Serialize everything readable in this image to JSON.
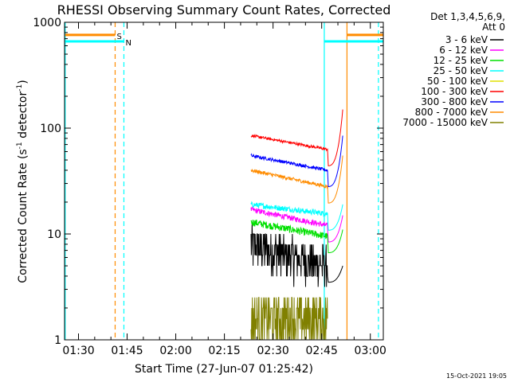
{
  "chart_data": {
    "type": "line",
    "title": "RHESSI Observing Summary Count Rates, Corrected",
    "xlabel": "Start Time (27-Jun-07 01:25:42)",
    "ylabel_main": "Corrected Count Rate (s",
    "ylabel_sup1": "-1",
    "ylabel_mid": " detector",
    "ylabel_sup2": "-1",
    "ylabel_end": ")",
    "yscale": "log",
    "ylim": [
      1,
      1000
    ],
    "xlim_minutes": [
      85.7,
      184.0
    ],
    "x_ticks": [
      {
        "minute": 90,
        "label": "01:30"
      },
      {
        "minute": 105,
        "label": "01:45"
      },
      {
        "minute": 120,
        "label": "02:00"
      },
      {
        "minute": 135,
        "label": "02:15"
      },
      {
        "minute": 150,
        "label": "02:30"
      },
      {
        "minute": 165,
        "label": "02:45"
      },
      {
        "minute": 180,
        "label": "03:00"
      }
    ],
    "y_ticks": [
      {
        "value": 1,
        "label": "1"
      },
      {
        "value": 10,
        "label": "10"
      },
      {
        "value": 100,
        "label": "100"
      },
      {
        "value": 1000,
        "label": "1000"
      }
    ],
    "legend_header": [
      "Det 1,3,4,5,6,9,",
      "Att 0"
    ],
    "series": [
      {
        "name": "3 - 6 keV",
        "color": "#000000",
        "level_start": 8.0,
        "level_end": 5.0,
        "noise": 0.22,
        "step": true
      },
      {
        "name": "6 - 12 keV",
        "color": "#ff00ff",
        "level_start": 17.0,
        "level_end": 12.0,
        "noise": 0.06
      },
      {
        "name": "12 - 25 keV",
        "color": "#00e000",
        "level_start": 13.0,
        "level_end": 9.5,
        "noise": 0.08
      },
      {
        "name": "25 - 50 keV",
        "color": "#00ffff",
        "level_start": 19.0,
        "level_end": 15.5,
        "noise": 0.06
      },
      {
        "name": "50 - 100 keV",
        "color": "#e0e000",
        "level_start": 0,
        "level_end": 0,
        "noise": 0
      },
      {
        "name": "100 - 300 keV",
        "color": "#ff0000",
        "level_start": 85.0,
        "level_end": 63.0,
        "noise": 0.03
      },
      {
        "name": "300 - 800 keV",
        "color": "#0000ff",
        "level_start": 55.0,
        "level_end": 40.0,
        "noise": 0.035
      },
      {
        "name": "800 - 7000 keV",
        "color": "#ff8c00",
        "level_start": 40.0,
        "level_end": 28.0,
        "noise": 0.04
      },
      {
        "name": "7000 - 15000 keV",
        "color": "#808000",
        "level_start": 1.6,
        "level_end": 1.6,
        "noise": 0.3,
        "step": true
      }
    ],
    "data_window_minutes": [
      143.2,
      166.8
    ],
    "rise_window_minutes": [
      166.8,
      171.5
    ],
    "peak_values": {
      "100 - 300 keV": 150,
      "300 - 800 keV": 85,
      "800 - 7000 keV": 55,
      "25 - 50 keV": 19,
      "6 - 12 keV": 15,
      "12 - 25 keV": 11,
      "3 - 6 keV": 5
    },
    "vertical_markers": [
      {
        "minute": 85.9,
        "color": "#00ffff",
        "style": "solid"
      },
      {
        "minute": 101.3,
        "color": "#ff8c00",
        "style": "dashed"
      },
      {
        "minute": 104.0,
        "color": "#00ffff",
        "style": "dashed"
      },
      {
        "minute": 165.8,
        "color": "#00ffff",
        "style": "solid"
      },
      {
        "minute": 172.8,
        "color": "#ff8c00",
        "style": "solid"
      },
      {
        "minute": 182.5,
        "color": "#00ffff",
        "style": "dashed"
      }
    ],
    "flag_bars": [
      {
        "label": "S",
        "color": "#ff8c00",
        "value": 760,
        "segments": [
          [
            85.9,
            101.3
          ],
          [
            172.8,
            184.0
          ]
        ],
        "label_at": 101.8
      },
      {
        "label": "N",
        "color": "#00ffff",
        "value": 660,
        "segments": [
          [
            85.9,
            104.0
          ],
          [
            165.8,
            184.0
          ]
        ],
        "label_at": 104.5
      }
    ],
    "footer_date": "15-Oct-2021 19:05"
  }
}
